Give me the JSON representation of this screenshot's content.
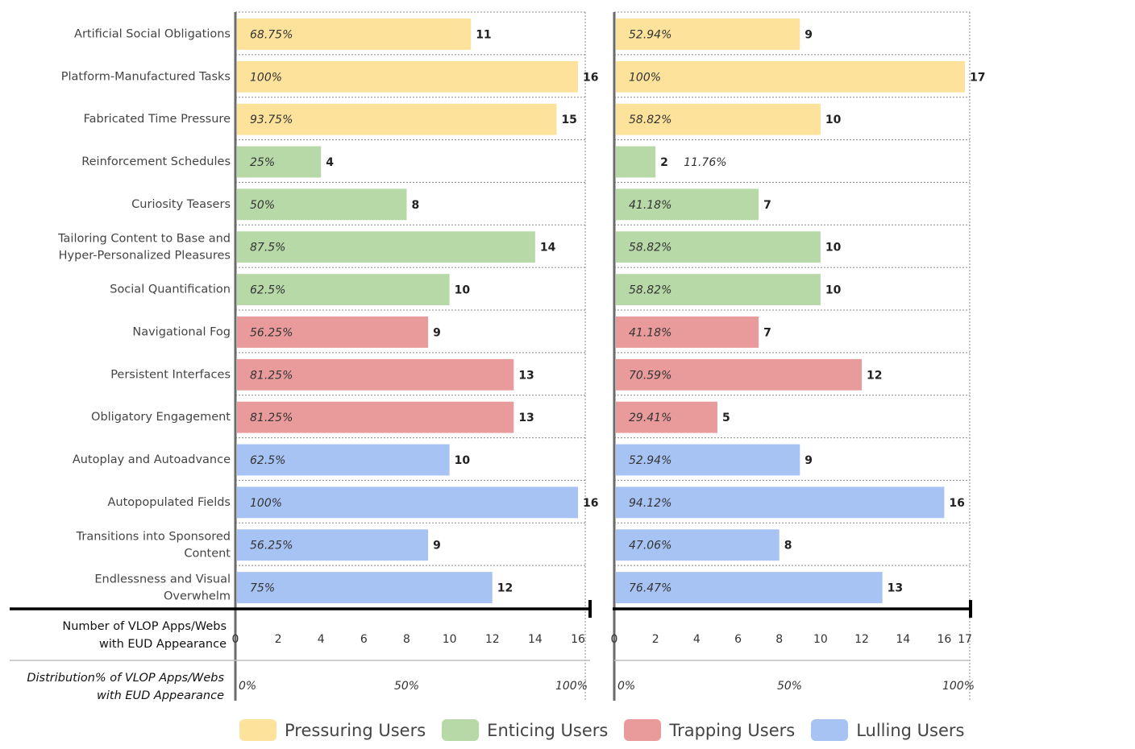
{
  "chart_data": {
    "type": "bar",
    "orientation": "horizontal",
    "categories": [
      "Artificial Social Obligations",
      "Platform-Manufactured Tasks",
      "Fabricated Time Pressure",
      "Reinforcement Schedules",
      "Curiosity Teasers",
      "Tailoring Content to Base and Hyper-Personalized Pleasures",
      "Social Quantification",
      "Navigational Fog",
      "Persistent Interfaces",
      "Obligatory Engagement",
      "Autoplay and Autoadvance",
      "Autopopulated Fields",
      "Transitions into Sponsored Content",
      "Endlessness and Visual Overwhelm"
    ],
    "category_lines": [
      [
        "Artificial Social Obligations"
      ],
      [
        "Platform-Manufactured Tasks"
      ],
      [
        "Fabricated Time Pressure"
      ],
      [
        "Reinforcement Schedules"
      ],
      [
        "Curiosity Teasers"
      ],
      [
        "Tailoring Content to Base and",
        "Hyper-Personalized Pleasures"
      ],
      [
        "Social Quantification"
      ],
      [
        "Navigational Fog"
      ],
      [
        "Persistent Interfaces"
      ],
      [
        "Obligatory Engagement"
      ],
      [
        "Autoplay and Autoadvance"
      ],
      [
        "Autopopulated Fields"
      ],
      [
        "Transitions into Sponsored",
        "Content"
      ],
      [
        "Endlessness and Visual",
        "Overwhelm"
      ]
    ],
    "groups": [
      "pressuring",
      "pressuring",
      "pressuring",
      "enticing",
      "enticing",
      "enticing",
      "enticing",
      "trapping",
      "trapping",
      "trapping",
      "lulling",
      "lulling",
      "lulling",
      "lulling"
    ],
    "panels": [
      {
        "max": 16,
        "xticks": [
          "0",
          "2",
          "4",
          "6",
          "8",
          "10",
          "12",
          "14",
          "16"
        ],
        "pct_ticks": [
          "0%",
          "50%",
          "100%"
        ],
        "values": [
          11,
          16,
          15,
          4,
          8,
          14,
          10,
          9,
          13,
          13,
          10,
          16,
          9,
          12
        ],
        "percent_labels": [
          "68.75%",
          "100%",
          "93.75%",
          "25%",
          "50%",
          "87.5%",
          "62.5%",
          "56.25%",
          "81.25%",
          "81.25%",
          "62.5%",
          "100%",
          "56.25%",
          "75%"
        ],
        "percent_outside": []
      },
      {
        "max": 17,
        "xticks": [
          "0",
          "2",
          "4",
          "6",
          "8",
          "10",
          "12",
          "14",
          "16",
          "17"
        ],
        "pct_ticks": [
          "0%",
          "50%",
          "100%"
        ],
        "values": [
          9,
          17,
          10,
          2,
          7,
          10,
          10,
          7,
          12,
          5,
          9,
          16,
          8,
          13
        ],
        "percent_labels": [
          "52.94%",
          "100%",
          "58.82%",
          "11.76%",
          "41.18%",
          "58.82%",
          "58.82%",
          "41.18%",
          "70.59%",
          "29.41%",
          "52.94%",
          "94.12%",
          "47.06%",
          "76.47%"
        ],
        "percent_outside": [
          3
        ]
      }
    ],
    "axis_titles": {
      "count": [
        "Number of VLOP Apps/Webs",
        "with EUD Appearance"
      ],
      "percent": [
        "Distribution% of VLOP Apps/Webs",
        "with EUD Appearance"
      ]
    },
    "colors": {
      "pressuring": "#fde29b",
      "enticing": "#b7d9a7",
      "trapping": "#e99b9b",
      "lulling": "#a7c3f3"
    },
    "legend": [
      {
        "key": "pressuring",
        "label": "Pressuring Users"
      },
      {
        "key": "enticing",
        "label": "Enticing Users"
      },
      {
        "key": "trapping",
        "label": "Trapping Users"
      },
      {
        "key": "lulling",
        "label": "Lulling Users"
      }
    ]
  }
}
